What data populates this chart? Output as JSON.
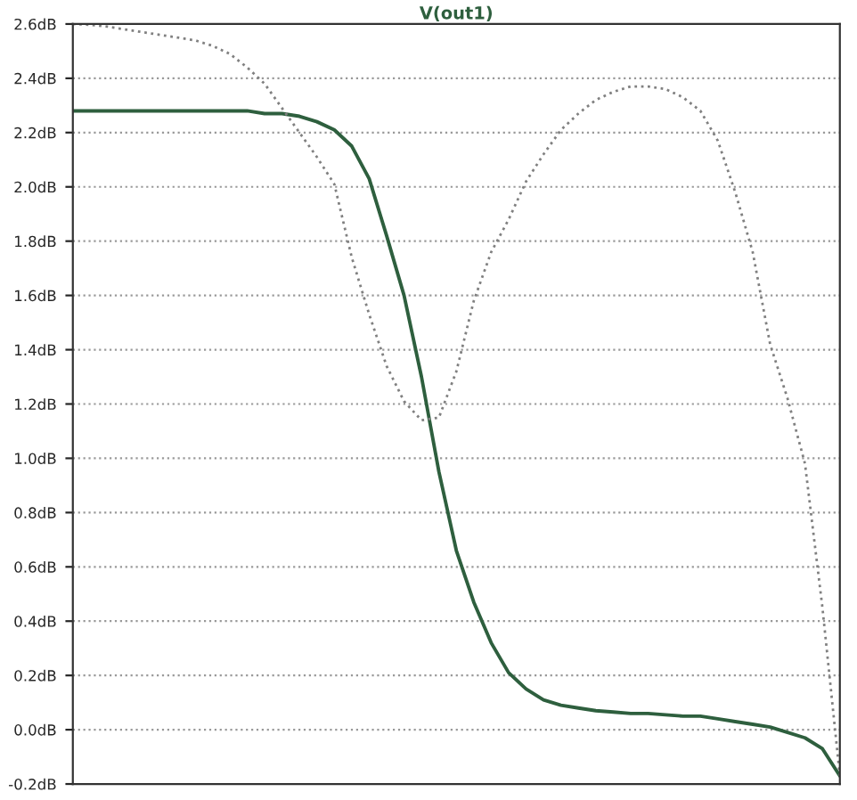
{
  "chart_data": {
    "type": "line",
    "title": "V(out1)",
    "categories": [
      null,
      null,
      null,
      null,
      null,
      null,
      null,
      null,
      null,
      null,
      null,
      null,
      null,
      null,
      null,
      null,
      null,
      null,
      null,
      null,
      null,
      null,
      null,
      null,
      null,
      null,
      null,
      null,
      null,
      null,
      null,
      null,
      null,
      null,
      null,
      null,
      null,
      null,
      null,
      null,
      null,
      null,
      null,
      null,
      null
    ],
    "series": [
      {
        "color": "#2e5f3e",
        "line_style": "solid",
        "values": [
          2.28,
          2.28,
          2.28,
          2.28,
          2.28,
          2.28,
          2.28,
          2.28,
          2.28,
          2.28,
          2.28,
          2.27,
          2.27,
          2.26,
          2.24,
          2.21,
          2.15,
          2.03,
          1.82,
          1.6,
          1.3,
          0.95,
          0.66,
          0.47,
          0.32,
          0.21,
          0.15,
          0.11,
          0.09,
          0.08,
          0.07,
          0.065,
          0.06,
          0.06,
          0.055,
          0.05,
          0.05,
          0.04,
          0.03,
          0.02,
          0.01,
          -0.01,
          -0.03,
          -0.07,
          -0.17
        ]
      },
      {
        "color": "#808080",
        "line_style": "dotted",
        "values": [
          2.6,
          2.597,
          2.59,
          2.58,
          2.57,
          2.56,
          2.55,
          2.54,
          2.52,
          2.49,
          2.44,
          2.38,
          2.29,
          2.2,
          2.11,
          2.01,
          1.74,
          1.53,
          1.34,
          1.21,
          1.14,
          1.15,
          1.32,
          1.58,
          1.76,
          1.88,
          2.02,
          2.12,
          2.21,
          2.27,
          2.32,
          2.35,
          2.37,
          2.37,
          2.36,
          2.33,
          2.28,
          2.17,
          1.98,
          1.76,
          1.42,
          1.22,
          0.98,
          0.45,
          -0.17
        ]
      }
    ],
    "ylim": [
      -0.2,
      2.6
    ],
    "yticks": [
      {
        "value": -0.2,
        "label": "-0.2dB"
      },
      {
        "value": 0.0,
        "label": "0.0dB"
      },
      {
        "value": 0.2,
        "label": "0.2dB"
      },
      {
        "value": 0.4,
        "label": "0.4dB"
      },
      {
        "value": 0.6,
        "label": "0.6dB"
      },
      {
        "value": 0.8,
        "label": "0.8dB"
      },
      {
        "value": 1.0,
        "label": "1.0dB"
      },
      {
        "value": 1.2,
        "label": "1.2dB"
      },
      {
        "value": 1.4,
        "label": "1.4dB"
      },
      {
        "value": 1.6,
        "label": "1.6dB"
      },
      {
        "value": 1.8,
        "label": "1.8dB"
      },
      {
        "value": 2.0,
        "label": "2.0dB"
      },
      {
        "value": 2.2,
        "label": "2.2dB"
      },
      {
        "value": 2.4,
        "label": "2.4dB"
      },
      {
        "value": 2.6,
        "label": "2.6dB"
      }
    ],
    "grid": "y",
    "tick_labels": "y",
    "legend": false
  }
}
